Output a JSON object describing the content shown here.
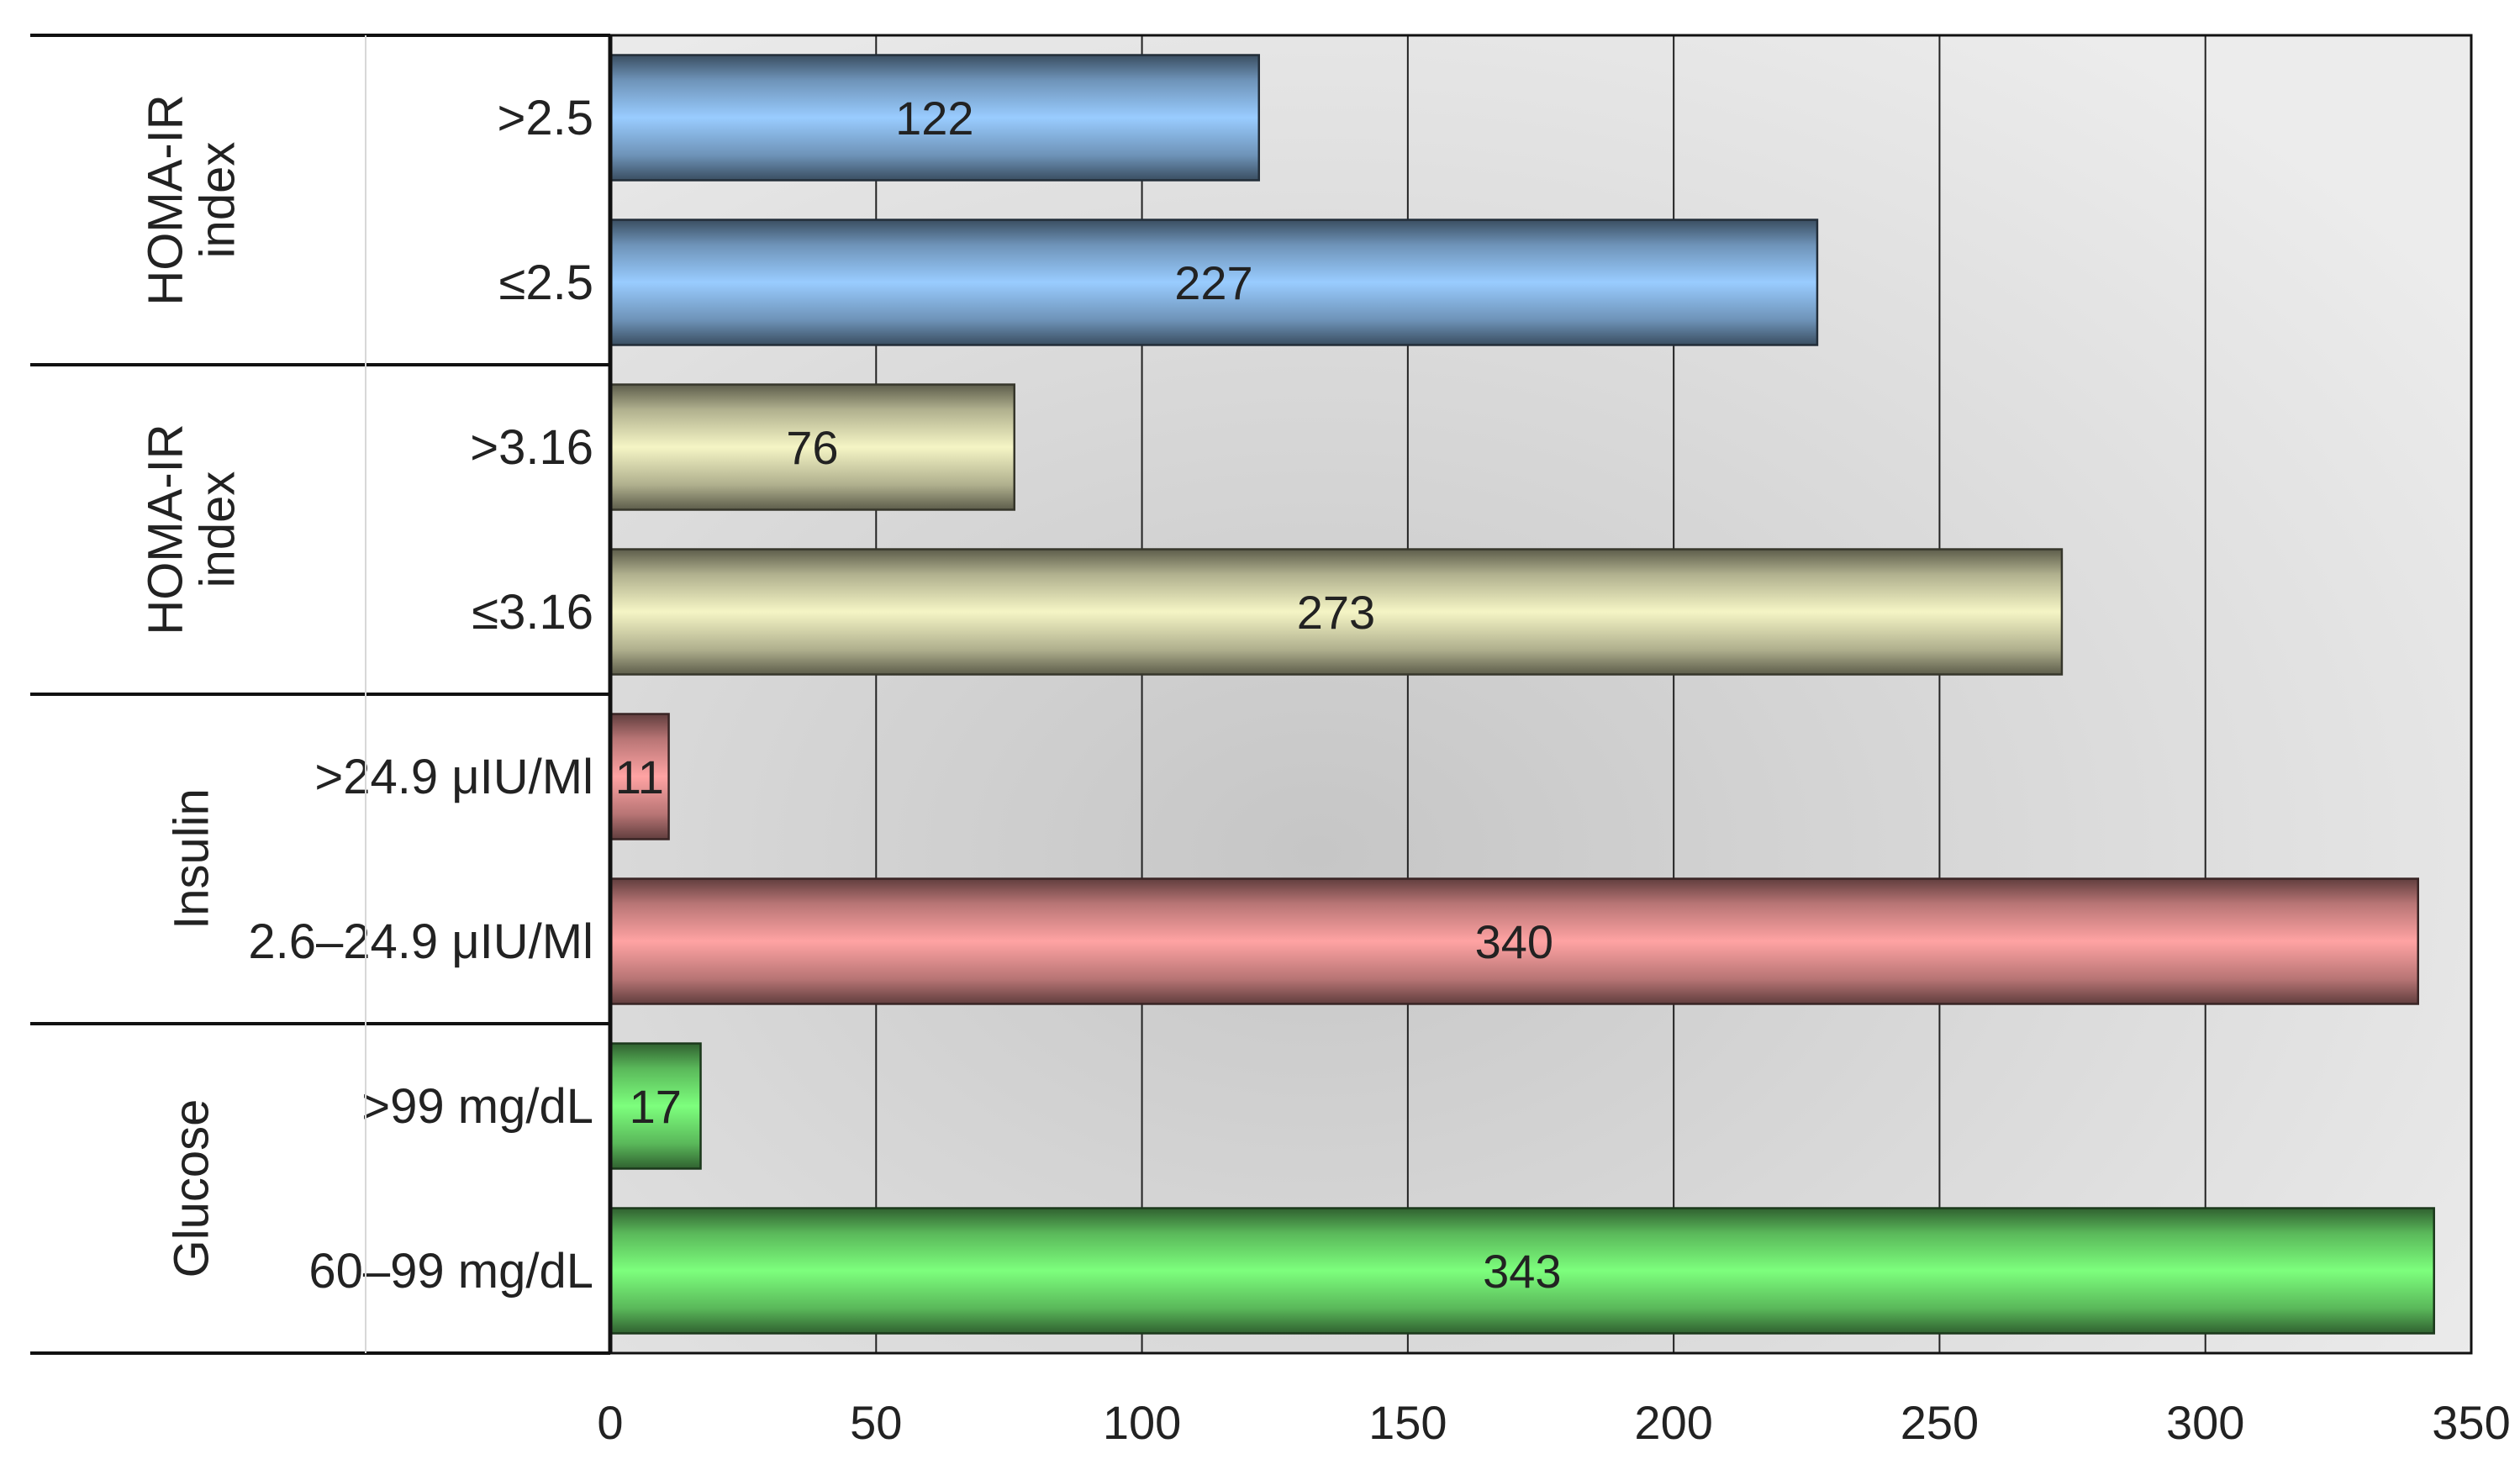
{
  "chart_data": {
    "type": "bar",
    "orientation": "horizontal",
    "title": "",
    "xlabel": "",
    "ylabel": "",
    "xlim": [
      0,
      350
    ],
    "ticks": [
      0,
      50,
      100,
      150,
      200,
      250,
      300,
      350
    ],
    "grid": true,
    "legend": "none",
    "groups": [
      {
        "label": "HOMA-IR index",
        "label_lines": [
          "HOMA-IR",
          "index"
        ],
        "color": "#99ccff",
        "categories": [
          ">2.5",
          "≤2.5"
        ],
        "values": [
          122,
          227
        ]
      },
      {
        "label": "HOMA-IR index",
        "label_lines": [
          "HOMA-IR",
          "index"
        ],
        "color": "#f5f5c5",
        "categories": [
          ">3.16",
          "≤3.16"
        ],
        "values": [
          76,
          273
        ]
      },
      {
        "label": "Insulin",
        "label_lines": [
          "Insulin"
        ],
        "color": "#ffa3a3",
        "categories": [
          ">24.9 μIU/Ml",
          "2.6–24.9 μIU/Ml"
        ],
        "values": [
          11,
          340
        ]
      },
      {
        "label": "Glucose",
        "label_lines": [
          "Glucose"
        ],
        "color": "#7dff7d",
        "categories": [
          ">99 mg/dL",
          "60–99 mg/dL"
        ],
        "values": [
          17,
          343
        ]
      }
    ]
  }
}
